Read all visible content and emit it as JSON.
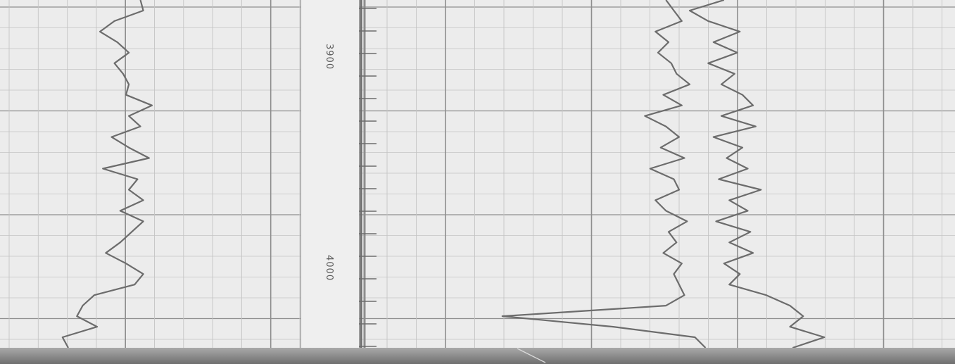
{
  "chart_data": {
    "type": "line",
    "title": "",
    "depth_axis": {
      "orientation": "horizontal",
      "range": [
        3855,
        4020
      ],
      "tick_labels": [
        "3900",
        "4000"
      ],
      "tick_values": [
        3900,
        4000
      ]
    },
    "grid": true,
    "tracks": [
      {
        "name": "",
        "value_range": [
          0,
          10
        ],
        "series": [
          {
            "name": "",
            "depth": [
              3855,
              3860,
              3865,
              3870,
              3875,
              3880,
              3885,
              3890,
              3895,
              3900,
              3905,
              3910,
              3915,
              3920,
              3925,
              3930,
              3935,
              3940,
              3945,
              3950,
              3955,
              3960,
              3965,
              3970,
              3975,
              3980,
              3985,
              3990,
              3995,
              4000,
              4005,
              4010,
              4015,
              4020
            ],
            "value": [
              4.5,
              4.6,
              3.6,
              3.1,
              3.7,
              4.1,
              3.6,
              3.9,
              4.1,
              4.0,
              4.9,
              4.1,
              4.5,
              3.5,
              4.1,
              4.8,
              3.2,
              4.4,
              4.1,
              4.6,
              3.8,
              4.6,
              4.2,
              3.8,
              3.3,
              4.0,
              4.6,
              4.3,
              2.9,
              2.5,
              2.3,
              3.0,
              1.8,
              2.0
            ]
          }
        ]
      },
      {
        "name": "",
        "value_range": [
          0,
          10
        ],
        "series": [
          {
            "name": "",
            "depth": [
              3855,
              3875,
              3895,
              3915,
              3935,
              3955,
              3975,
              3995,
              4015,
              4020
            ],
            "value": [
              0.2,
              0.2,
              0.2,
              0.2,
              0.2,
              0.2,
              0.2,
              0.2,
              0.2,
              0.2
            ]
          }
        ]
      },
      {
        "name": "",
        "value_range": [
          0,
          20
        ],
        "series": [
          {
            "name": "",
            "depth": [
              3855,
              3860,
              3865,
              3870,
              3875,
              3880,
              3885,
              3890,
              3895,
              3900,
              3905,
              3910,
              3915,
              3920,
              3925,
              3930,
              3935,
              3940,
              3945,
              3950,
              3955,
              3960,
              3965,
              3970,
              3975,
              3980,
              3985,
              3990,
              3995,
              4000,
              4005,
              4010,
              4015,
              4020
            ],
            "value": [
              9.5,
              9.8,
              10.1,
              9.1,
              9.6,
              9.2,
              9.7,
              9.9,
              10.4,
              9.4,
              10.1,
              8.7,
              9.5,
              10.0,
              9.3,
              10.2,
              8.9,
              9.8,
              10.0,
              9.1,
              9.5,
              10.3,
              9.6,
              9.9,
              9.4,
              10.1,
              9.8,
              10.0,
              10.2,
              9.5,
              3.3,
              7.5,
              10.6,
              11.0
            ]
          },
          {
            "name": "",
            "depth": [
              3855,
              3860,
              3865,
              3870,
              3875,
              3880,
              3885,
              3890,
              3895,
              3900,
              3905,
              3910,
              3915,
              3920,
              3925,
              3930,
              3935,
              3940,
              3945,
              3950,
              3955,
              3960,
              3965,
              3970,
              3975,
              3980,
              3985,
              3990,
              3995,
              4000,
              4005,
              4010,
              4015,
              4020
            ],
            "value": [
              11.7,
              10.4,
              11.1,
              12.3,
              11.3,
              12.2,
              11.1,
              12.1,
              11.6,
              12.4,
              12.8,
              11.6,
              12.9,
              11.3,
              12.4,
              11.8,
              12.6,
              11.5,
              13.1,
              11.9,
              12.6,
              11.4,
              12.7,
              11.9,
              12.8,
              11.7,
              12.3,
              11.9,
              13.3,
              14.2,
              14.7,
              14.2,
              15.5,
              14.3
            ]
          }
        ]
      }
    ]
  },
  "depth_labels": {
    "label_3900": "3900",
    "label_4000": "4000"
  },
  "colors": {
    "paper": "#ececec",
    "grid_light": "#c4c4c4",
    "grid_heavy": "#8e8e8e",
    "trace": "#6c6c6c",
    "bottom_shadow": "#7a7a7a"
  }
}
